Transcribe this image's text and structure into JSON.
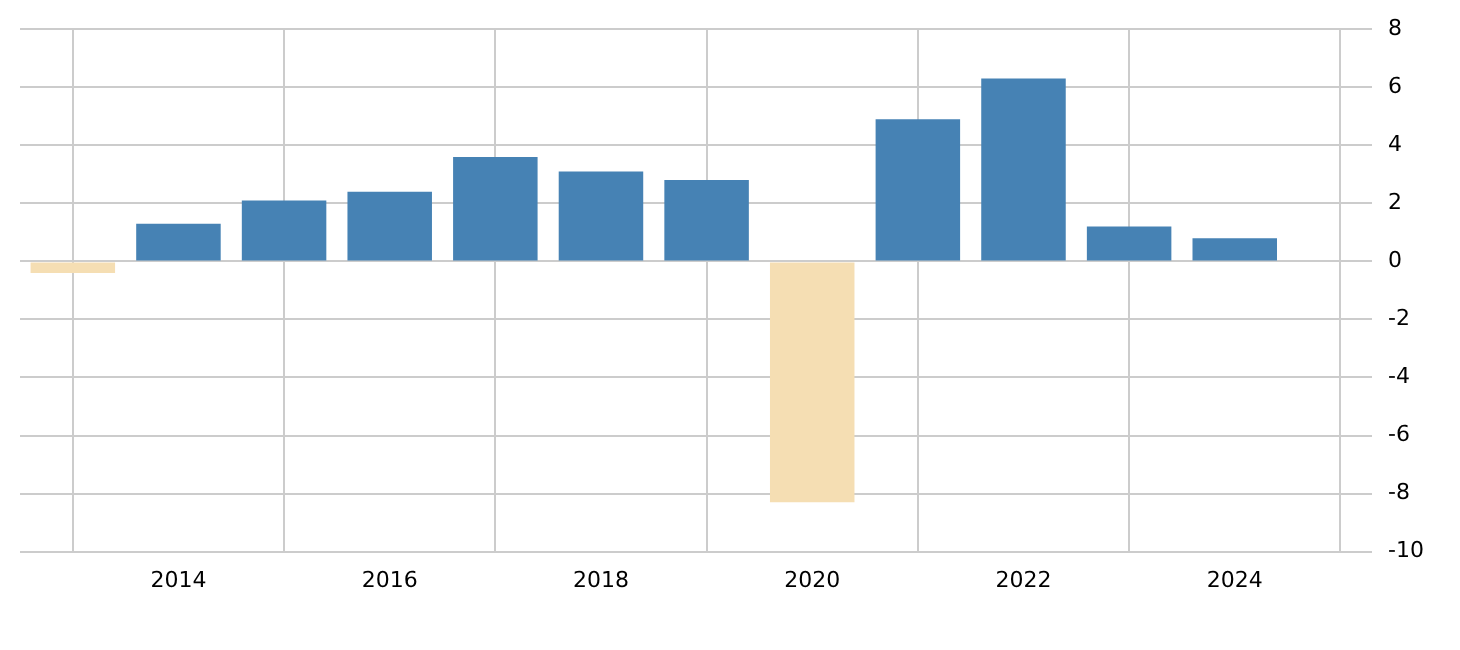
{
  "chart_data": {
    "type": "bar",
    "x": [
      2013,
      2014,
      2015,
      2016,
      2017,
      2018,
      2019,
      2020,
      2021,
      2022,
      2023,
      2024
    ],
    "values": [
      -0.4,
      1.3,
      2.1,
      2.4,
      3.6,
      3.1,
      2.8,
      -8.3,
      4.9,
      6.3,
      1.2,
      0.8
    ],
    "colors": [
      "#f5deb3",
      "#4682b4",
      "#4682b4",
      "#4682b4",
      "#4682b4",
      "#4682b4",
      "#4682b4",
      "#f5deb3",
      "#4682b4",
      "#4682b4",
      "#4682b4",
      "#4682b4"
    ],
    "xlim": [
      2012.5,
      2025.3
    ],
    "xticks": [
      2014,
      2016,
      2018,
      2020,
      2022,
      2024
    ],
    "ylim": [
      -10,
      8
    ],
    "yticks": [
      -10,
      -8,
      -6,
      -4,
      -2,
      0,
      2,
      4,
      6,
      8
    ],
    "grid": true,
    "legend": false
  }
}
